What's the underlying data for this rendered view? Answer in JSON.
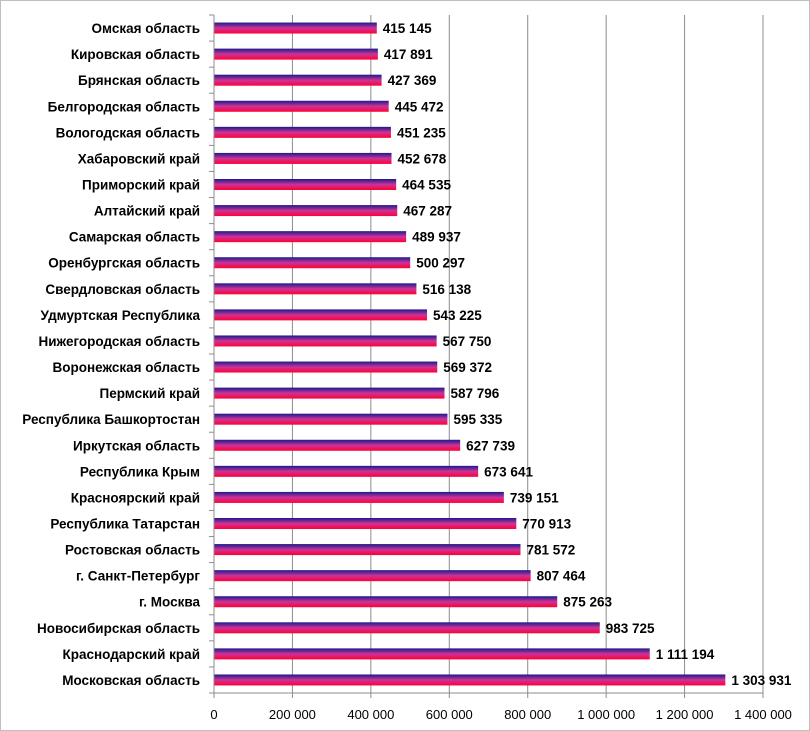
{
  "chart_data": {
    "type": "bar",
    "orientation": "horizontal",
    "title": "",
    "xlabel": "",
    "ylabel": "",
    "xlim": [
      0,
      1400000
    ],
    "grid": true,
    "legend": "none",
    "bar_gradient": [
      "#1a1a8c",
      "#cc3399",
      "#ff0033"
    ],
    "categories": [
      "Омская область",
      "Кировская область",
      "Брянская область",
      "Белгородская область",
      "Вологодская область",
      "Хабаровский край",
      "Приморский край",
      "Алтайский край",
      "Самарская область",
      "Оренбургская область",
      "Свердловская область",
      "Удмуртская Республика",
      "Нижегородская область",
      "Воронежская область",
      "Пермский край",
      "Республика Башкортостан",
      "Иркутская область",
      "Республика Крым",
      "Красноярский край",
      "Республика Татарстан",
      "Ростовская область",
      "г. Санкт-Петербург",
      "г. Москва",
      "Новосибирская область",
      "Краснодарский край",
      "Московская область"
    ],
    "values": [
      415145,
      417891,
      427369,
      445472,
      451235,
      452678,
      464535,
      467287,
      489937,
      500297,
      516138,
      543225,
      567750,
      569372,
      587796,
      595335,
      627739,
      673641,
      739151,
      770913,
      781572,
      807464,
      875263,
      983725,
      1111194,
      1303931
    ],
    "value_labels": [
      "415 145",
      "417 891",
      "427 369",
      "445 472",
      "451 235",
      "452 678",
      "464 535",
      "467 287",
      "489 937",
      "500 297",
      "516 138",
      "543 225",
      "567 750",
      "569 372",
      "587 796",
      "595 335",
      "627 739",
      "673 641",
      "739 151",
      "770 913",
      "781 572",
      "807 464",
      "875 263",
      "983 725",
      "1 111 194",
      "1 303 931"
    ],
    "x_ticks": [
      0,
      200000,
      400000,
      600000,
      800000,
      1000000,
      1200000,
      1400000
    ],
    "x_tick_labels": [
      "0",
      "200 000",
      "400 000",
      "600 000",
      "800 000",
      "1 000 000",
      "1 200 000",
      "1 400 000"
    ]
  }
}
